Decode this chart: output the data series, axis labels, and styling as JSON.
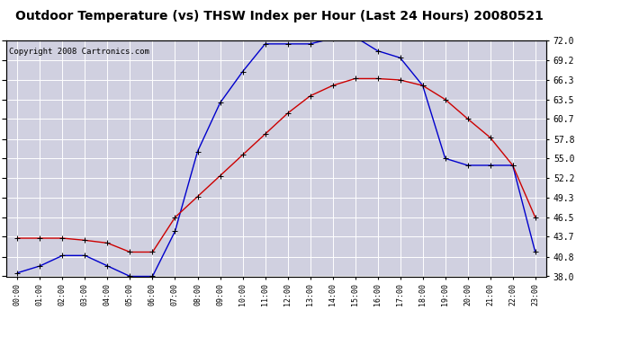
{
  "title": "Outdoor Temperature (vs) THSW Index per Hour (Last 24 Hours) 20080521",
  "copyright": "Copyright 2008 Cartronics.com",
  "x_labels": [
    "00:00",
    "01:00",
    "02:00",
    "03:00",
    "04:00",
    "05:00",
    "06:00",
    "07:00",
    "08:00",
    "09:00",
    "10:00",
    "11:00",
    "12:00",
    "13:00",
    "14:00",
    "15:00",
    "16:00",
    "17:00",
    "18:00",
    "19:00",
    "20:00",
    "21:00",
    "22:00",
    "23:00"
  ],
  "temp_red": [
    43.5,
    43.5,
    43.5,
    43.2,
    42.8,
    41.5,
    41.5,
    46.5,
    49.5,
    52.5,
    55.5,
    58.5,
    61.5,
    64.0,
    65.5,
    66.5,
    66.5,
    66.3,
    65.5,
    63.5,
    60.7,
    58.0,
    54.0,
    46.5
  ],
  "thsw_blue": [
    38.5,
    39.5,
    41.0,
    41.0,
    39.5,
    38.0,
    38.0,
    44.5,
    56.0,
    63.0,
    67.5,
    71.5,
    71.5,
    71.5,
    72.3,
    72.5,
    70.5,
    69.5,
    65.5,
    55.0,
    54.0,
    54.0,
    54.0,
    41.5
  ],
  "y_ticks": [
    38.0,
    40.8,
    43.7,
    46.5,
    49.3,
    52.2,
    55.0,
    57.8,
    60.7,
    63.5,
    66.3,
    69.2,
    72.0
  ],
  "y_min": 38.0,
  "y_max": 72.0,
  "bg_color": "#ffffff",
  "plot_bg_color": "#d0d0e0",
  "grid_color": "#ffffff",
  "red_color": "#cc0000",
  "blue_color": "#0000cc",
  "title_fontsize": 10,
  "copyright_fontsize": 6.5,
  "border_color": "#000000"
}
